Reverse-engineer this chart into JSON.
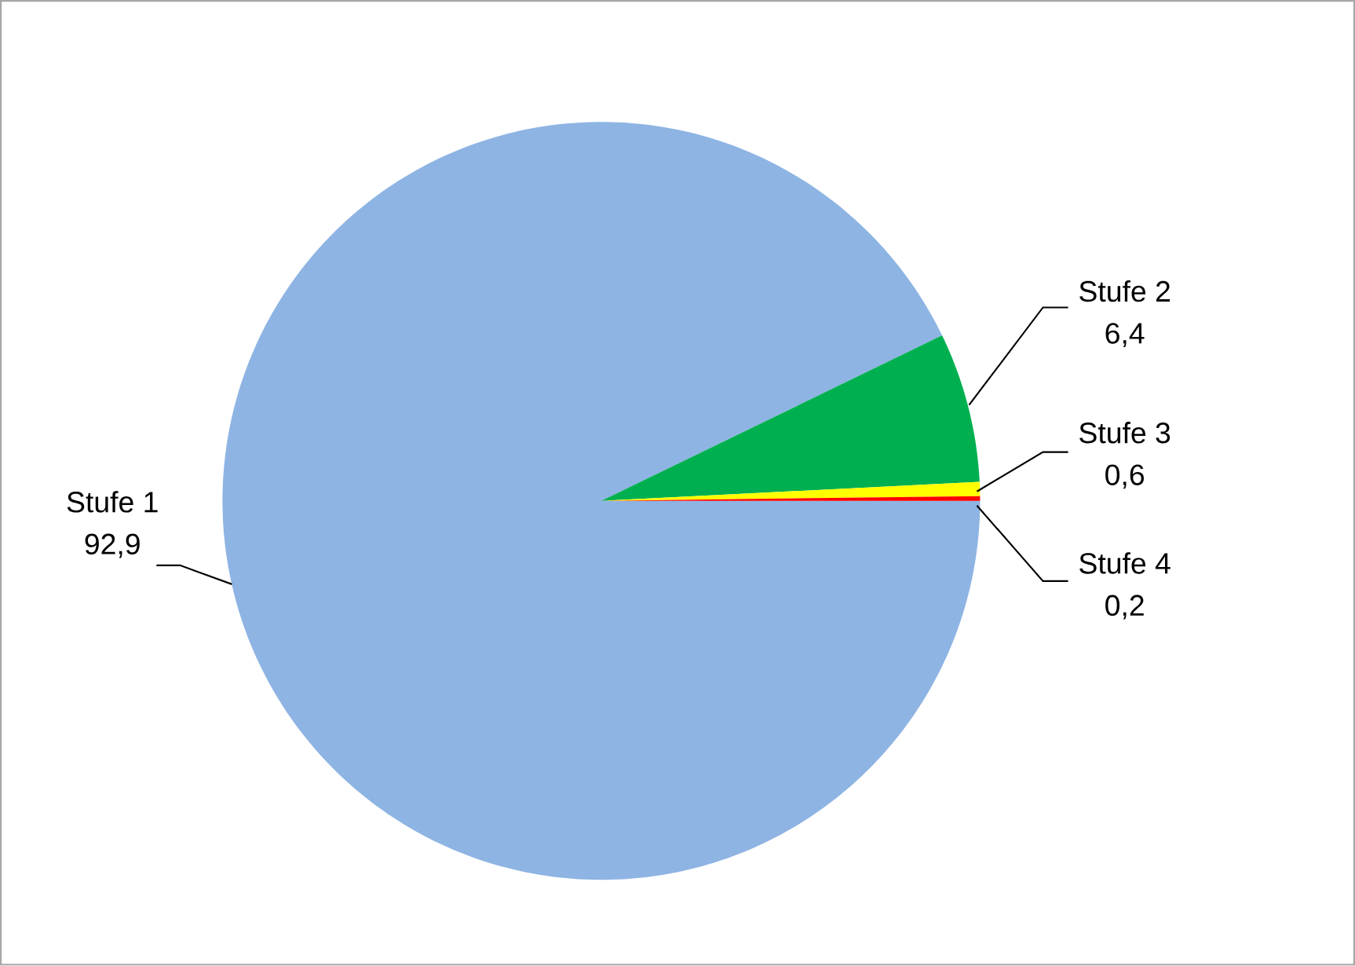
{
  "chart_data": {
    "type": "pie",
    "categories": [
      "Stufe 1",
      "Stufe 2",
      "Stufe 3",
      "Stufe 4"
    ],
    "values": [
      92.9,
      6.4,
      0.6,
      0.2
    ],
    "value_labels": [
      "92,9",
      "6,4",
      "0,6",
      "0,2"
    ],
    "colors": [
      "#8eb4e3",
      "#00b050",
      "#ffff00",
      "#ff0000"
    ]
  }
}
